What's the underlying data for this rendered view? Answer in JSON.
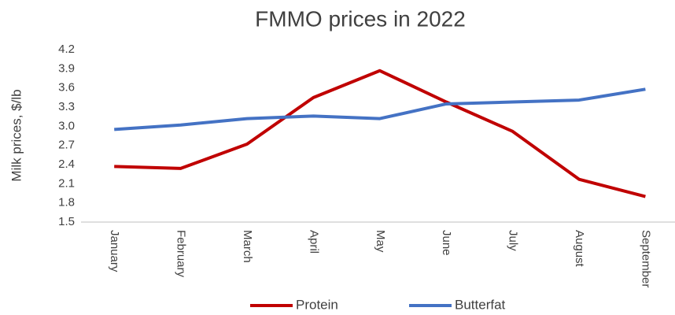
{
  "chart_data": {
    "type": "line",
    "title": "FMMO prices in 2022",
    "y_label": "Milk prices, $/lb",
    "categories": [
      "January",
      "February",
      "March",
      "April",
      "May",
      "June",
      "July",
      "August",
      "September"
    ],
    "series": [
      {
        "name": "Protein",
        "color": "#c00000",
        "values": [
          2.37,
          2.34,
          2.72,
          3.45,
          3.87,
          3.38,
          2.92,
          2.17,
          1.9
        ]
      },
      {
        "name": "Butterfat",
        "color": "#4472c4",
        "values": [
          2.95,
          3.02,
          3.12,
          3.16,
          3.12,
          3.35,
          3.38,
          3.41,
          3.58
        ]
      }
    ],
    "ylim": [
      1.5,
      4.2
    ],
    "yticks": [
      1.5,
      1.8,
      2.1,
      2.4,
      2.7,
      {
        "value": 3,
        "label": "3.0"
      },
      3.3,
      3.6,
      3.9,
      4.2
    ],
    "grid": false,
    "legend": "bottom"
  }
}
